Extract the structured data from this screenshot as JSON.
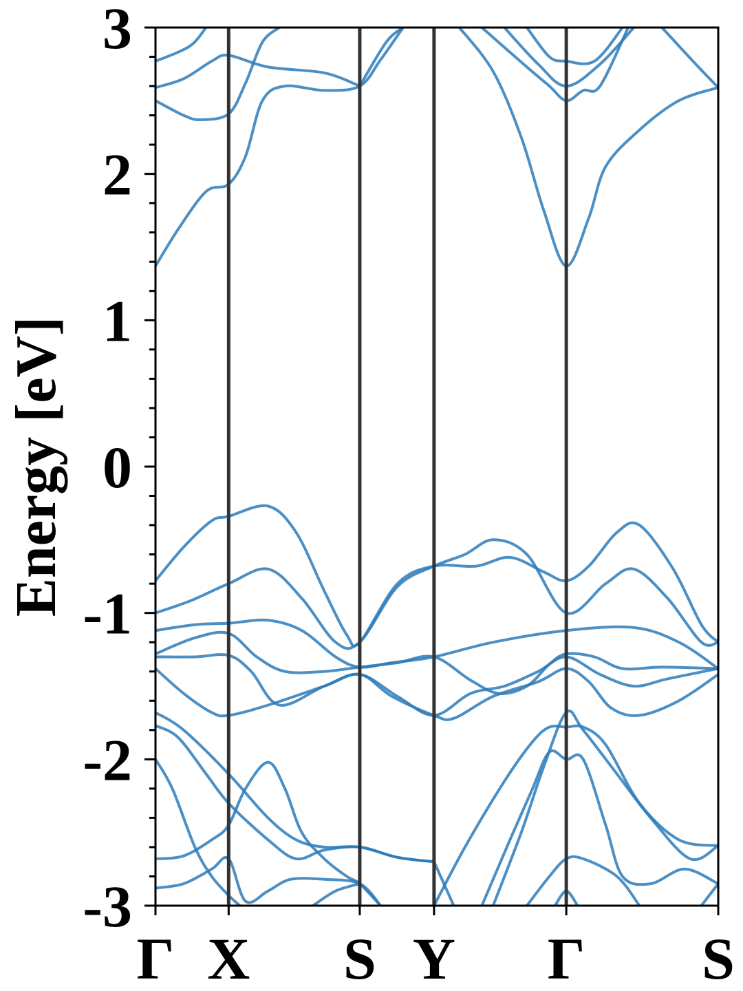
{
  "chart_data": {
    "type": "line",
    "title": "",
    "xlabel": "",
    "ylabel": "Energy [eV]",
    "ylim": [
      -3,
      3
    ],
    "xlim": [
      0,
      1
    ],
    "grid": false,
    "legend": "none",
    "yticks": [
      -3,
      -2,
      -1,
      0,
      1,
      2,
      3
    ],
    "ytick_labels": [
      "-3",
      "-2",
      "-1",
      "0",
      "1",
      "2",
      "3"
    ],
    "kpoints": [
      {
        "label": "Γ",
        "x": 0.0
      },
      {
        "label": "X",
        "x": 0.13
      },
      {
        "label": "S",
        "x": 0.363
      },
      {
        "label": "Y",
        "x": 0.495
      },
      {
        "label": "Γ",
        "x": 0.73
      },
      {
        "label": "S",
        "x": 1.0
      }
    ],
    "colors": {
      "band": "#2b7bba",
      "kpath_line": "#333333",
      "axes": "#000000"
    },
    "series": [
      {
        "points": [
          [
            0,
            1.37
          ],
          [
            0.04,
            1.62
          ],
          [
            0.09,
            1.88
          ],
          [
            0.13,
            1.93
          ],
          [
            0.16,
            2.12
          ],
          [
            0.19,
            2.5
          ],
          [
            0.23,
            2.6
          ],
          [
            0.3,
            2.57
          ],
          [
            0.363,
            2.6
          ],
          [
            0.4,
            2.78
          ],
          [
            0.44,
            3.0
          ]
        ]
      },
      {
        "points": [
          [
            0,
            2.5
          ],
          [
            0.05,
            2.4
          ],
          [
            0.08,
            2.37
          ],
          [
            0.13,
            2.41
          ],
          [
            0.16,
            2.62
          ],
          [
            0.19,
            2.9
          ],
          [
            0.22,
            3.0
          ]
        ]
      },
      {
        "points": [
          [
            0,
            2.59
          ],
          [
            0.05,
            2.65
          ],
          [
            0.1,
            2.77
          ],
          [
            0.13,
            2.81
          ],
          [
            0.2,
            2.73
          ],
          [
            0.3,
            2.69
          ],
          [
            0.363,
            2.6
          ]
        ]
      },
      {
        "points": [
          [
            0,
            2.77
          ],
          [
            0.06,
            2.87
          ],
          [
            0.09,
            3.0
          ]
        ]
      },
      {
        "points": [
          [
            0.363,
            2.6
          ],
          [
            0.41,
            2.9
          ],
          [
            0.44,
            3.0
          ]
        ]
      },
      {
        "points": [
          [
            0.54,
            3.0
          ],
          [
            0.6,
            2.7
          ],
          [
            0.65,
            2.25
          ],
          [
            0.69,
            1.75
          ],
          [
            0.73,
            1.37
          ],
          [
            0.77,
            1.7
          ],
          [
            0.8,
            2.05
          ],
          [
            0.86,
            2.3
          ],
          [
            0.93,
            2.5
          ],
          [
            1.0,
            2.59
          ]
        ]
      },
      {
        "points": [
          [
            0.58,
            3.0
          ],
          [
            0.66,
            2.73
          ],
          [
            0.7,
            2.6
          ],
          [
            0.73,
            2.5
          ],
          [
            0.76,
            2.57
          ],
          [
            0.79,
            2.6
          ],
          [
            0.84,
            3.0
          ]
        ]
      },
      {
        "points": [
          [
            0.62,
            3.0
          ],
          [
            0.68,
            2.75
          ],
          [
            0.73,
            2.6
          ],
          [
            0.79,
            2.75
          ],
          [
            0.85,
            3.0
          ]
        ]
      },
      {
        "points": [
          [
            0.66,
            3.0
          ],
          [
            0.7,
            2.8
          ],
          [
            0.73,
            2.77
          ],
          [
            0.78,
            2.77
          ],
          [
            0.83,
            3.0
          ]
        ]
      },
      {
        "points": [
          [
            0.9,
            3.0
          ],
          [
            0.96,
            2.75
          ],
          [
            1.0,
            2.59
          ]
        ]
      },
      {
        "points": [
          [
            0,
            -0.78
          ],
          [
            0.05,
            -0.55
          ],
          [
            0.1,
            -0.37
          ],
          [
            0.13,
            -0.34
          ],
          [
            0.2,
            -0.27
          ],
          [
            0.25,
            -0.45
          ],
          [
            0.3,
            -0.85
          ],
          [
            0.34,
            -1.15
          ],
          [
            0.363,
            -1.2
          ],
          [
            0.43,
            -0.8
          ],
          [
            0.495,
            -0.68
          ],
          [
            0.57,
            -0.68
          ],
          [
            0.63,
            -0.62
          ],
          [
            0.69,
            -0.72
          ],
          [
            0.73,
            -0.78
          ],
          [
            0.77,
            -0.68
          ],
          [
            0.82,
            -0.45
          ],
          [
            0.86,
            -0.4
          ],
          [
            0.92,
            -0.7
          ],
          [
            0.97,
            -1.08
          ],
          [
            1.0,
            -1.2
          ]
        ]
      },
      {
        "points": [
          [
            0,
            -1.0
          ],
          [
            0.06,
            -0.92
          ],
          [
            0.13,
            -0.8
          ],
          [
            0.2,
            -0.7
          ],
          [
            0.26,
            -0.9
          ],
          [
            0.32,
            -1.2
          ],
          [
            0.363,
            -1.2
          ],
          [
            0.43,
            -0.82
          ],
          [
            0.495,
            -0.68
          ],
          [
            0.55,
            -0.6
          ],
          [
            0.6,
            -0.5
          ],
          [
            0.66,
            -0.6
          ],
          [
            0.73,
            -1.0
          ],
          [
            0.8,
            -0.8
          ],
          [
            0.85,
            -0.7
          ],
          [
            0.91,
            -0.9
          ],
          [
            0.97,
            -1.2
          ],
          [
            1.0,
            -1.2
          ]
        ]
      },
      {
        "points": [
          [
            0,
            -1.12
          ],
          [
            0.07,
            -1.08
          ],
          [
            0.13,
            -1.07
          ],
          [
            0.2,
            -1.05
          ],
          [
            0.26,
            -1.12
          ],
          [
            0.32,
            -1.3
          ],
          [
            0.363,
            -1.37
          ],
          [
            0.42,
            -1.34
          ],
          [
            0.495,
            -1.3
          ],
          [
            0.6,
            -1.2
          ],
          [
            0.73,
            -1.12
          ],
          [
            0.85,
            -1.1
          ],
          [
            0.93,
            -1.2
          ],
          [
            1.0,
            -1.38
          ]
        ]
      },
      {
        "points": [
          [
            0,
            -1.28
          ],
          [
            0.07,
            -1.17
          ],
          [
            0.13,
            -1.14
          ],
          [
            0.18,
            -1.3
          ],
          [
            0.23,
            -1.4
          ],
          [
            0.3,
            -1.4
          ],
          [
            0.363,
            -1.37
          ],
          [
            0.43,
            -1.34
          ],
          [
            0.495,
            -1.3
          ],
          [
            0.56,
            -1.46
          ],
          [
            0.61,
            -1.55
          ],
          [
            0.66,
            -1.5
          ],
          [
            0.7,
            -1.35
          ],
          [
            0.73,
            -1.28
          ],
          [
            0.78,
            -1.3
          ],
          [
            0.83,
            -1.38
          ],
          [
            0.9,
            -1.37
          ],
          [
            1.0,
            -1.38
          ]
        ]
      },
      {
        "points": [
          [
            0,
            -1.3
          ],
          [
            0.07,
            -1.3
          ],
          [
            0.13,
            -1.29
          ],
          [
            0.17,
            -1.4
          ],
          [
            0.22,
            -1.63
          ],
          [
            0.3,
            -1.5
          ],
          [
            0.363,
            -1.42
          ],
          [
            0.43,
            -1.57
          ],
          [
            0.495,
            -1.7
          ],
          [
            0.56,
            -1.55
          ],
          [
            0.62,
            -1.5
          ],
          [
            0.68,
            -1.4
          ],
          [
            0.73,
            -1.3
          ],
          [
            0.79,
            -1.42
          ],
          [
            0.85,
            -1.5
          ],
          [
            0.91,
            -1.45
          ],
          [
            1.0,
            -1.38
          ]
        ]
      },
      {
        "points": [
          [
            0,
            -1.38
          ],
          [
            0.05,
            -1.55
          ],
          [
            0.1,
            -1.68
          ],
          [
            0.13,
            -1.7
          ],
          [
            0.2,
            -1.63
          ],
          [
            0.3,
            -1.5
          ],
          [
            0.363,
            -1.42
          ],
          [
            0.42,
            -1.57
          ],
          [
            0.495,
            -1.7
          ],
          [
            0.53,
            -1.72
          ],
          [
            0.6,
            -1.57
          ],
          [
            0.68,
            -1.47
          ],
          [
            0.73,
            -1.38
          ],
          [
            0.77,
            -1.47
          ],
          [
            0.81,
            -1.65
          ],
          [
            0.86,
            -1.7
          ],
          [
            0.93,
            -1.6
          ],
          [
            1.0,
            -1.42
          ]
        ]
      },
      {
        "points": [
          [
            0,
            -1.68
          ],
          [
            0.05,
            -1.8
          ],
          [
            0.13,
            -2.1
          ],
          [
            0.2,
            -2.4
          ],
          [
            0.25,
            -2.55
          ],
          [
            0.3,
            -2.6
          ],
          [
            0.363,
            -2.6
          ],
          [
            0.43,
            -2.67
          ],
          [
            0.495,
            -2.7
          ]
        ]
      },
      {
        "points": [
          [
            0,
            -1.77
          ],
          [
            0.04,
            -1.85
          ],
          [
            0.09,
            -2.1
          ],
          [
            0.13,
            -2.3
          ],
          [
            0.2,
            -2.55
          ],
          [
            0.25,
            -2.68
          ],
          [
            0.3,
            -2.62
          ],
          [
            0.363,
            -2.6
          ],
          [
            0.43,
            -2.67
          ],
          [
            0.495,
            -2.7
          ]
        ]
      },
      {
        "points": [
          [
            0,
            -2.0
          ],
          [
            0.03,
            -2.2
          ],
          [
            0.07,
            -2.6
          ],
          [
            0.1,
            -2.8
          ],
          [
            0.13,
            -2.93
          ],
          [
            0.15,
            -3.0
          ]
        ]
      },
      {
        "points": [
          [
            0,
            -2.68
          ],
          [
            0.05,
            -2.66
          ],
          [
            0.1,
            -2.55
          ],
          [
            0.13,
            -2.45
          ],
          [
            0.16,
            -2.2
          ],
          [
            0.2,
            -2.02
          ],
          [
            0.23,
            -2.2
          ],
          [
            0.26,
            -2.5
          ],
          [
            0.3,
            -2.68
          ],
          [
            0.34,
            -2.8
          ],
          [
            0.363,
            -2.85
          ],
          [
            0.4,
            -3.0
          ]
        ]
      },
      {
        "points": [
          [
            0,
            -2.88
          ],
          [
            0.05,
            -2.85
          ],
          [
            0.1,
            -2.75
          ],
          [
            0.13,
            -2.68
          ],
          [
            0.16,
            -2.97
          ],
          [
            0.2,
            -2.9
          ],
          [
            0.24,
            -2.82
          ],
          [
            0.3,
            -2.82
          ],
          [
            0.363,
            -2.85
          ],
          [
            0.4,
            -3.0
          ]
        ]
      },
      {
        "points": [
          [
            0.28,
            -3.0
          ],
          [
            0.32,
            -2.9
          ],
          [
            0.363,
            -2.85
          ]
        ]
      },
      {
        "points": [
          [
            0.495,
            -2.7
          ],
          [
            0.53,
            -3.0
          ]
        ]
      },
      {
        "points": [
          [
            0.495,
            -3.0
          ],
          [
            0.55,
            -2.6
          ],
          [
            0.62,
            -2.15
          ],
          [
            0.67,
            -1.88
          ],
          [
            0.7,
            -1.78
          ],
          [
            0.73,
            -1.78
          ],
          [
            0.76,
            -1.78
          ],
          [
            0.8,
            -1.9
          ],
          [
            0.86,
            -2.3
          ],
          [
            0.93,
            -2.55
          ],
          [
            1.0,
            -2.59
          ]
        ]
      },
      {
        "points": [
          [
            0.58,
            -3.0
          ],
          [
            0.63,
            -2.55
          ],
          [
            0.67,
            -2.2
          ],
          [
            0.7,
            -1.95
          ],
          [
            0.73,
            -2.0
          ],
          [
            0.76,
            -2.0
          ],
          [
            0.8,
            -2.45
          ],
          [
            0.83,
            -2.8
          ],
          [
            0.88,
            -2.85
          ],
          [
            0.94,
            -2.75
          ],
          [
            1.0,
            -2.85
          ]
        ]
      },
      {
        "points": [
          [
            0.6,
            -3.0
          ],
          [
            0.65,
            -2.5
          ],
          [
            0.69,
            -2.05
          ],
          [
            0.73,
            -1.68
          ],
          [
            0.76,
            -1.8
          ],
          [
            0.82,
            -2.1
          ],
          [
            0.88,
            -2.4
          ],
          [
            0.95,
            -2.68
          ],
          [
            1.0,
            -2.59
          ]
        ]
      },
      {
        "points": [
          [
            0.66,
            -3.0
          ],
          [
            0.7,
            -2.8
          ],
          [
            0.73,
            -2.68
          ],
          [
            0.76,
            -2.68
          ],
          [
            0.82,
            -2.8
          ],
          [
            0.86,
            -3.0
          ]
        ]
      },
      {
        "points": [
          [
            0.71,
            -3.0
          ],
          [
            0.73,
            -2.9
          ],
          [
            0.75,
            -3.0
          ]
        ]
      },
      {
        "points": [
          [
            0.97,
            -3.0
          ],
          [
            1.0,
            -2.85
          ]
        ]
      }
    ]
  }
}
